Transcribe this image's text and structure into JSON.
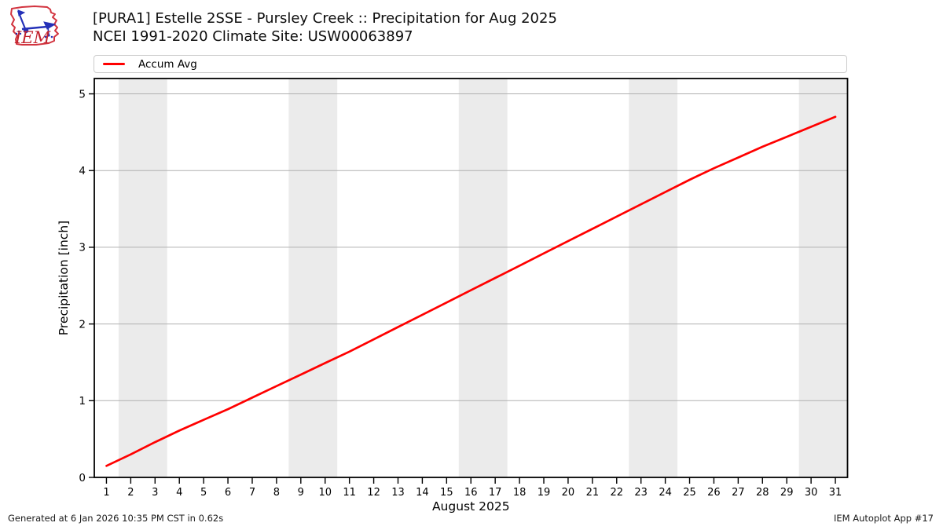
{
  "header": {
    "title": "[PURA1] Estelle 2SSE - Pursley Creek :: Precipitation for Aug 2025",
    "subtitle": "NCEI 1991-2020 Climate Site: USW00063897",
    "logo_text": "IEM"
  },
  "legend": {
    "items": [
      {
        "label": "Accum Avg",
        "color": "#ff0000"
      }
    ]
  },
  "chart_data": {
    "type": "line",
    "title": "",
    "xlabel": "August 2025",
    "ylabel": "Precipitation [inch]",
    "xlim": [
      0.5,
      31.5
    ],
    "ylim": [
      0,
      5.2
    ],
    "xticks": [
      1,
      2,
      3,
      4,
      5,
      6,
      7,
      8,
      9,
      10,
      11,
      12,
      13,
      14,
      15,
      16,
      17,
      18,
      19,
      20,
      21,
      22,
      23,
      24,
      25,
      26,
      27,
      28,
      29,
      30,
      31
    ],
    "yticks": [
      0,
      1,
      2,
      3,
      4,
      5
    ],
    "grid": "horizontal",
    "grid_color": "#b0b0b0",
    "band_color": "#ebebeb",
    "weekend_bands": [
      [
        1.5,
        3.5
      ],
      [
        8.5,
        10.5
      ],
      [
        15.5,
        17.5
      ],
      [
        22.5,
        24.5
      ],
      [
        29.5,
        31.5
      ]
    ],
    "series": [
      {
        "name": "Accum Avg",
        "color": "#ff0000",
        "x": [
          1,
          2,
          3,
          4,
          5,
          6,
          7,
          8,
          9,
          10,
          11,
          12,
          13,
          14,
          15,
          16,
          17,
          18,
          19,
          20,
          21,
          22,
          23,
          24,
          25,
          26,
          27,
          28,
          29,
          30,
          31
        ],
        "values": [
          0.15,
          0.3,
          0.46,
          0.61,
          0.75,
          0.89,
          1.04,
          1.19,
          1.34,
          1.49,
          1.64,
          1.8,
          1.96,
          2.12,
          2.28,
          2.44,
          2.6,
          2.76,
          2.92,
          3.08,
          3.24,
          3.4,
          3.56,
          3.72,
          3.88,
          4.03,
          4.17,
          4.31,
          4.44,
          4.57,
          4.7
        ]
      }
    ]
  },
  "footer": {
    "left": "Generated at 6 Jan 2026 10:35 PM CST in 0.62s",
    "right": "IEM Autoplot App #17"
  }
}
